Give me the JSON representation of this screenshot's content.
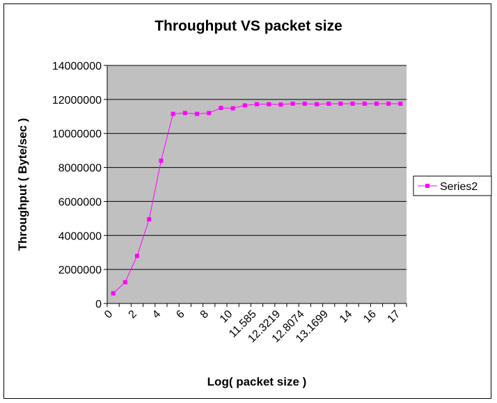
{
  "chart_data": {
    "type": "line",
    "title": "Throughput VS packet size",
    "xlabel": "Log( packet size )",
    "ylabel": "Throughput ( Byte/sec )",
    "ylim": [
      0,
      14000000
    ],
    "yticks": [
      "0",
      "2000000",
      "4000000",
      "6000000",
      "8000000",
      "10000000",
      "12000000",
      "14000000"
    ],
    "x_tick_labels": [
      "0",
      "2",
      "4",
      "6",
      "8",
      "10",
      "11.585",
      "12.3219",
      "12.8074",
      "13.1699",
      "14",
      "16",
      "17"
    ],
    "grid": true,
    "legend": "right",
    "series": [
      {
        "name": "Series2",
        "color": "#ff00ff",
        "values": [
          600000,
          1250000,
          2800000,
          4950000,
          8400000,
          11150000,
          11200000,
          11150000,
          11200000,
          11500000,
          11480000,
          11650000,
          11720000,
          11720000,
          11700000,
          11750000,
          11750000,
          11720000,
          11750000,
          11750000,
          11750000,
          11750000,
          11750000,
          11750000,
          11750000
        ]
      }
    ]
  },
  "colors": {
    "plot_background": "#c0c0c0",
    "gridline": "#000000",
    "series": "#ff00ff"
  }
}
